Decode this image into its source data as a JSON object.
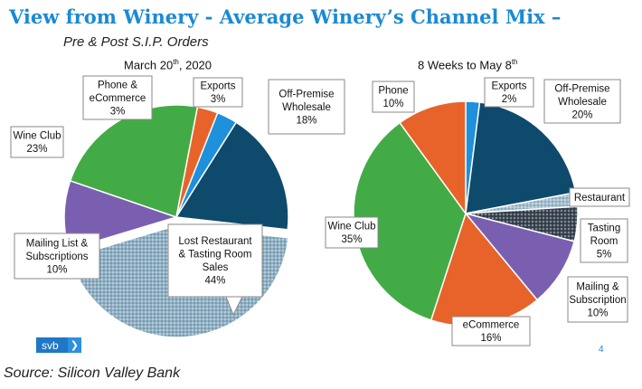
{
  "title": "View from Winery - Average Winery’s Channel Mix –",
  "subtitle": "Pre & Post S.I.P. Orders",
  "footer": {
    "source": "Source: Silicon Valley Bank",
    "logo_text": "svb",
    "logo_arrow": "❯",
    "page_number": "4"
  },
  "colors": {
    "exports": "#1e90dc",
    "off_premise": "#0e4a6b",
    "restaurant": "#9fb8c8",
    "tasting": "#44505c",
    "mailing": "#7a5fb0",
    "ecommerce": "#e8632a",
    "wine_club": "#43ab46",
    "phone": "#e8632a",
    "lost": "#8fb0c4"
  },
  "chart_data": [
    {
      "type": "pie",
      "title": "March 20th, 2020",
      "title_main": "March 20",
      "title_sup": "th",
      "title_end": ", 2020",
      "slices": [
        {
          "label": "Exports",
          "value": 3,
          "display": "3%",
          "color": "#1e90dc"
        },
        {
          "label": "Off-Premise Wholesale",
          "value": 18,
          "display": "18%",
          "color": "#0e4a6b"
        },
        {
          "label": "Lost Restaurant & Tasting Room Sales",
          "value": 44,
          "display": "44%",
          "color": "#8fb0c4",
          "exploded": true,
          "pattern": "dots"
        },
        {
          "label": "Mailing List & Subscriptions",
          "value": 10,
          "display": "10%",
          "color": "#7a5fb0"
        },
        {
          "label": "Wine Club",
          "value": 23,
          "display": "23%",
          "color": "#43ab46"
        },
        {
          "label": "Phone & eCommerce",
          "value": 3,
          "display": "3%",
          "color": "#e8632a"
        }
      ],
      "labels": {
        "exports": [
          "Exports",
          "3%"
        ],
        "off_premise": [
          "Off-Premise",
          "Wholesale",
          "18%"
        ],
        "lost": [
          "Lost Restaurant",
          "& Tasting Room",
          "Sales",
          "44%"
        ],
        "mailing": [
          "Mailing List &",
          "Subscriptions",
          "10%"
        ],
        "wine_club": [
          "Wine Club",
          "23%"
        ],
        "phone": [
          "Phone &",
          "eCommerce",
          "3%"
        ]
      }
    },
    {
      "type": "pie",
      "title": "8 Weeks to May 8th",
      "title_main": "8 Weeks to May 8",
      "title_sup": "th",
      "title_end": "",
      "slices": [
        {
          "label": "Exports",
          "value": 2,
          "display": "2%",
          "color": "#1e90dc"
        },
        {
          "label": "Off-Premise Wholesale",
          "value": 20,
          "display": "20%",
          "color": "#0e4a6b"
        },
        {
          "label": "Restaurant",
          "value": 2,
          "display": "",
          "color": "#9fb8c8",
          "pattern": "dots"
        },
        {
          "label": "Tasting Room",
          "value": 5,
          "display": "5%",
          "color": "#44505c",
          "pattern": "dots"
        },
        {
          "label": "Mailing & Subscription",
          "value": 10,
          "display": "10%",
          "color": "#7a5fb0"
        },
        {
          "label": "eCommerce",
          "value": 16,
          "display": "16%",
          "color": "#e8632a"
        },
        {
          "label": "Wine Club",
          "value": 35,
          "display": "35%",
          "color": "#43ab46"
        },
        {
          "label": "Phone",
          "value": 10,
          "display": "10%",
          "color": "#e8632a"
        }
      ],
      "labels": {
        "exports": [
          "Exports",
          "2%"
        ],
        "off_premise": [
          "Off-Premise",
          "Wholesale",
          "20%"
        ],
        "restaurant": [
          "Restaurant"
        ],
        "tasting": [
          "Tasting",
          "Room",
          "5%"
        ],
        "mailing": [
          "Mailing &",
          "Subscription",
          "10%"
        ],
        "ecommerce": [
          "eCommerce",
          "16%"
        ],
        "wine_club": [
          "Wine Club",
          "35%"
        ],
        "phone": [
          "Phone",
          "10%"
        ]
      }
    }
  ]
}
